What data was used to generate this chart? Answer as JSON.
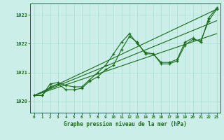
{
  "title": "Graphe pression niveau de la mer (hPa)",
  "background_color": "#cceee8",
  "grid_color": "#aaddcc",
  "line_color": "#1a6b1a",
  "x_min": -0.5,
  "x_max": 23.5,
  "y_min": 1019.6,
  "y_max": 1023.4,
  "yticks": [
    1020,
    1021,
    1022,
    1023
  ],
  "xticks": [
    0,
    1,
    2,
    3,
    4,
    5,
    6,
    7,
    8,
    9,
    10,
    11,
    12,
    13,
    14,
    15,
    16,
    17,
    18,
    19,
    20,
    21,
    22,
    23
  ],
  "series1_x": [
    0,
    1,
    2,
    3,
    4,
    5,
    6,
    7,
    8,
    9,
    10,
    11,
    12,
    13,
    14,
    15,
    16,
    17,
    18,
    19,
    20,
    21,
    22,
    23
  ],
  "series1_y": [
    1020.2,
    1020.2,
    1020.5,
    1020.6,
    1020.4,
    1020.4,
    1020.45,
    1020.7,
    1020.85,
    1021.1,
    1021.25,
    1021.8,
    1022.25,
    1022.05,
    1021.65,
    1021.65,
    1021.35,
    1021.35,
    1021.45,
    1022.05,
    1022.2,
    1022.05,
    1022.9,
    1023.25
  ],
  "series2_x": [
    0,
    1,
    2,
    3,
    4,
    5,
    6,
    7,
    8,
    9,
    10,
    11,
    12,
    13,
    14,
    15,
    16,
    17,
    18,
    19,
    20,
    21,
    22,
    23
  ],
  "series2_y": [
    1020.2,
    1020.2,
    1020.6,
    1020.65,
    1020.55,
    1020.5,
    1020.5,
    1020.75,
    1021.0,
    1021.25,
    1021.65,
    1022.05,
    1022.35,
    1022.0,
    1021.7,
    1021.65,
    1021.3,
    1021.3,
    1021.4,
    1021.95,
    1022.15,
    1022.1,
    1022.8,
    1023.2
  ],
  "line1_x": [
    0,
    23
  ],
  "line1_y": [
    1020.2,
    1023.2
  ],
  "line2_x": [
    0,
    23
  ],
  "line2_y": [
    1020.2,
    1022.8
  ],
  "line3_x": [
    0,
    23
  ],
  "line3_y": [
    1020.2,
    1022.35
  ]
}
